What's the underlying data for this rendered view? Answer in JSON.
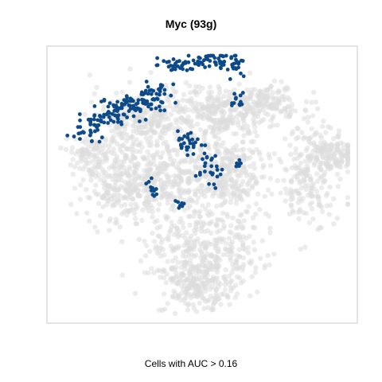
{
  "title": "Myc (93g)",
  "caption": "Cells with AUC > 0.16",
  "colors": {
    "highlight": "#0d4a8a",
    "background_cells": "#dcdcdc",
    "frame": "#c8c8c8"
  },
  "chart_data": {
    "type": "scatter",
    "title": "Myc (93g)",
    "xlabel": "Cells with AUC > 0.16",
    "ylabel": "",
    "axes_visible": false,
    "grid": false,
    "legend": "none",
    "series": [
      {
        "name": "",
        "role": "background",
        "color": "#dcdcdc",
        "clusters": [
          {
            "x": 30,
            "y": 75,
            "sx": 9,
            "sy": 6,
            "n": 260
          },
          {
            "x": 55,
            "y": 78,
            "sx": 8,
            "sy": 5,
            "n": 240
          },
          {
            "x": 72,
            "y": 82,
            "sx": 6,
            "sy": 4,
            "n": 160
          },
          {
            "x": 22,
            "y": 50,
            "sx": 7,
            "sy": 7,
            "n": 260
          },
          {
            "x": 42,
            "y": 55,
            "sx": 9,
            "sy": 9,
            "n": 320
          },
          {
            "x": 60,
            "y": 55,
            "sx": 7,
            "sy": 8,
            "n": 240
          },
          {
            "x": 88,
            "y": 55,
            "sx": 5,
            "sy": 10,
            "n": 220
          },
          {
            "x": 96,
            "y": 62,
            "sx": 4,
            "sy": 3,
            "n": 110
          },
          {
            "x": 50,
            "y": 25,
            "sx": 10,
            "sy": 9,
            "n": 380
          },
          {
            "x": 48,
            "y": 10,
            "sx": 6,
            "sy": 5,
            "n": 180
          },
          {
            "x": 12,
            "y": 62,
            "sx": 4,
            "sy": 4,
            "n": 90
          }
        ]
      },
      {
        "name": "",
        "role": "highlight",
        "color": "#0d4a8a",
        "clusters": [
          {
            "x": 20,
            "y": 78,
            "sx": 4,
            "sy": 3,
            "n": 55
          },
          {
            "x": 10,
            "y": 72,
            "sx": 3,
            "sy": 3,
            "n": 35
          },
          {
            "x": 27,
            "y": 82,
            "sx": 3,
            "sy": 2.5,
            "n": 40
          },
          {
            "x": 35,
            "y": 84,
            "sx": 2.5,
            "sy": 3,
            "n": 35
          },
          {
            "x": 41,
            "y": 96,
            "sx": 3,
            "sy": 1.5,
            "n": 30
          },
          {
            "x": 52,
            "y": 98,
            "sx": 3,
            "sy": 1.5,
            "n": 35
          },
          {
            "x": 60,
            "y": 97,
            "sx": 3,
            "sy": 2,
            "n": 30
          },
          {
            "x": 62,
            "y": 82,
            "sx": 1.5,
            "sy": 2,
            "n": 12
          },
          {
            "x": 45,
            "y": 66,
            "sx": 2.5,
            "sy": 2,
            "n": 30
          },
          {
            "x": 53,
            "y": 55,
            "sx": 2,
            "sy": 3,
            "n": 25
          },
          {
            "x": 33,
            "y": 48,
            "sx": 1.5,
            "sy": 2,
            "n": 15
          },
          {
            "x": 43,
            "y": 42,
            "sx": 1,
            "sy": 1,
            "n": 8
          },
          {
            "x": 62,
            "y": 58,
            "sx": 1,
            "sy": 1.5,
            "n": 6
          }
        ]
      }
    ],
    "xlim": [
      0,
      100
    ],
    "ylim": [
      0,
      100
    ]
  }
}
